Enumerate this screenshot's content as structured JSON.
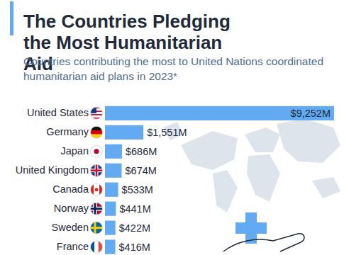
{
  "chart_data": {
    "type": "bar",
    "orientation": "horizontal",
    "title": "The Countries Pledging the Most Humanitarian Aid",
    "subtitle": "Countries contributing the most to United Nations coordinated humanitarian aid plans in 2023*",
    "categories": [
      "United States",
      "Germany",
      "Japan",
      "United Kingdom",
      "Canada",
      "Norway",
      "Sweden",
      "France"
    ],
    "values": [
      9252,
      1551,
      686,
      674,
      533,
      441,
      422,
      416
    ],
    "value_labels": [
      "$9,252M",
      "$1,551M",
      "$686M",
      "$674M",
      "$533M",
      "$441M",
      "$422M",
      "$416M"
    ],
    "color": "#62aaf2",
    "data_labels": true,
    "tick_labels": "y"
  }
}
